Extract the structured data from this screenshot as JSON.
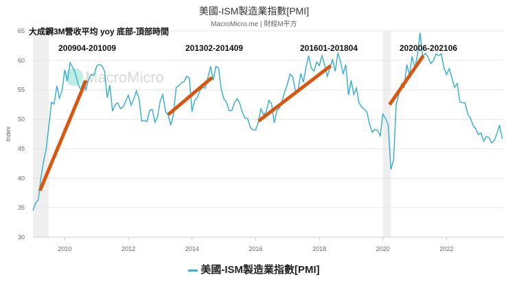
{
  "chart_data": {
    "type": "line",
    "title": "美國-ISM製造業指數[PMI]",
    "subtitle": "MacroMicro.me | 財經M平方",
    "ylabel": "Index",
    "ylim": [
      30,
      65
    ],
    "yticks": [
      30,
      35,
      40,
      45,
      50,
      55,
      60,
      65
    ],
    "xlim": [
      2009.0,
      2023.78
    ],
    "xticks": [
      2010,
      2012,
      2014,
      2016,
      2018,
      2020,
      2022
    ],
    "grid": true,
    "legend_position": "bottom",
    "watermark": "MacroMicro",
    "series": [
      {
        "name": "美國-ISM製造業指數[PMI]",
        "color": "#3ab0d0",
        "start": 2009.0,
        "step_months": 1,
        "values": [
          34.5,
          35.8,
          36.3,
          40.1,
          42.8,
          45.0,
          48.9,
          52.9,
          52.6,
          55.7,
          53.6,
          54.9,
          58.4,
          56.5,
          59.6,
          58.8,
          57.8,
          56.0,
          55.1,
          56.4,
          55.0,
          56.8,
          57.6,
          57.5,
          59.0,
          59.3,
          59.1,
          58.2,
          53.7,
          55.8,
          51.4,
          52.5,
          52.8,
          51.8,
          52.1,
          53.1,
          54.1,
          52.4,
          53.4,
          54.8,
          53.5,
          49.7,
          49.8,
          49.6,
          51.5,
          51.7,
          49.5,
          50.4,
          53.1,
          54.2,
          51.3,
          50.7,
          49.0,
          50.9,
          55.4,
          55.7,
          56.2,
          56.4,
          57.3,
          57.0,
          51.3,
          53.2,
          53.7,
          54.9,
          55.4,
          55.3,
          57.1,
          59.0,
          56.6,
          59.0,
          58.7,
          55.1,
          53.5,
          52.9,
          51.5,
          51.5,
          52.8,
          53.5,
          52.7,
          51.1,
          50.2,
          50.1,
          48.6,
          48.2,
          48.2,
          49.5,
          51.8,
          50.8,
          51.3,
          53.2,
          52.6,
          49.4,
          51.5,
          51.9,
          53.2,
          54.7,
          56.0,
          57.7,
          57.2,
          54.8,
          54.9,
          57.8,
          56.3,
          58.8,
          60.8,
          58.7,
          58.2,
          59.7,
          59.1,
          60.8,
          59.3,
          57.3,
          58.7,
          60.2,
          58.1,
          61.3,
          59.8,
          57.7,
          59.3,
          54.1,
          56.6,
          54.2,
          55.3,
          52.8,
          52.1,
          51.7,
          51.2,
          49.1,
          47.8,
          48.3,
          48.1,
          47.2,
          50.9,
          50.1,
          49.1,
          41.5,
          43.1,
          52.6,
          54.2,
          56.0,
          55.4,
          59.3,
          57.5,
          60.7,
          58.7,
          60.8,
          64.7,
          60.7,
          61.2,
          60.6,
          59.5,
          59.9,
          61.1,
          60.8,
          61.1,
          58.8,
          57.6,
          58.6,
          57.1,
          55.4,
          56.1,
          53.0,
          52.8,
          52.8,
          50.9,
          50.2,
          49.0,
          48.4,
          47.4,
          47.7,
          46.3,
          47.1,
          46.9,
          46.0,
          46.4,
          47.6,
          49.0,
          46.7
        ]
      }
    ],
    "recessions": [
      [
        2009.0,
        2009.5
      ],
      [
        2020.0,
        2020.25
      ]
    ],
    "annotation_title": "大成鋼3M營收平均 yoy 底部-頂部時間",
    "annotations": [
      {
        "label": "200904-201009",
        "from": [
          2009.22,
          37.9
        ],
        "to": [
          2010.67,
          56.6
        ]
      },
      {
        "label": "201302-201409",
        "from": [
          2013.25,
          50.8
        ],
        "to": [
          2014.63,
          57.1
        ]
      },
      {
        "label": "201601-201804",
        "from": [
          2016.09,
          49.7
        ],
        "to": [
          2018.36,
          59.1
        ]
      },
      {
        "label": "202006-202106",
        "from": [
          2020.21,
          52.5
        ],
        "to": [
          2021.27,
          60.8
        ]
      }
    ],
    "annotation_color": "#d9560f"
  }
}
